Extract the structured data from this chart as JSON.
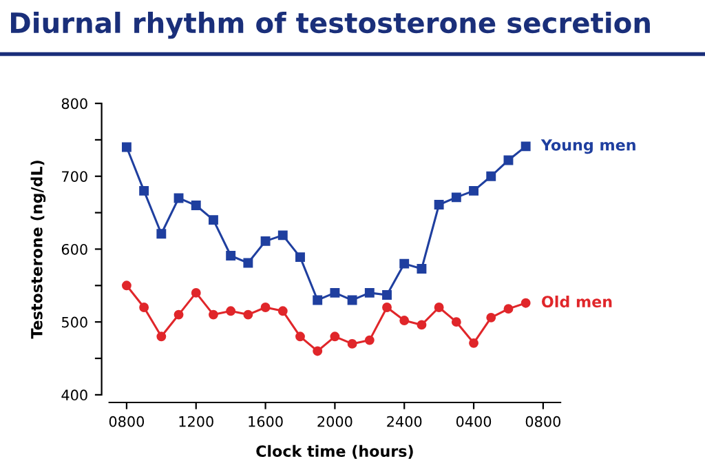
{
  "chart_data": {
    "type": "line",
    "title": "Diurnal rhythm of testosterone secretion",
    "xlabel": "Clock time (hours)",
    "ylabel": "Testosterone (ng/dL)",
    "categories": [
      "0800",
      null,
      null,
      null,
      "1200",
      null,
      null,
      null,
      "1600",
      null,
      null,
      null,
      "2000",
      null,
      null,
      null,
      "2400",
      null,
      null,
      null,
      "0400",
      null,
      null,
      null,
      "0800"
    ],
    "series": [
      {
        "name": "Young men",
        "color": "#1f3f9f",
        "marker": "square",
        "values": [
          740,
          680,
          621,
          670,
          660,
          640,
          591,
          581,
          611,
          619,
          589,
          530,
          540,
          530,
          540,
          537,
          580,
          573,
          661,
          671,
          680,
          700,
          722,
          741,
          null
        ]
      },
      {
        "name": "Old men",
        "color": "#e0262a",
        "marker": "circle",
        "values": [
          550,
          520,
          480,
          510,
          540,
          510,
          515,
          510,
          520,
          515,
          480,
          460,
          480,
          470,
          475,
          520,
          502,
          496,
          520,
          500,
          471,
          506,
          518,
          526,
          null
        ]
      }
    ],
    "ylim": [
      400,
      800
    ],
    "yticks": [
      400,
      {
        "value": 450,
        "label": null
      },
      500,
      {
        "value": 550,
        "label": null
      },
      600,
      {
        "value": 650,
        "label": null
      },
      700,
      {
        "value": 750,
        "label": null
      },
      800
    ],
    "grid": false,
    "legend": false,
    "line_style": "solid"
  }
}
